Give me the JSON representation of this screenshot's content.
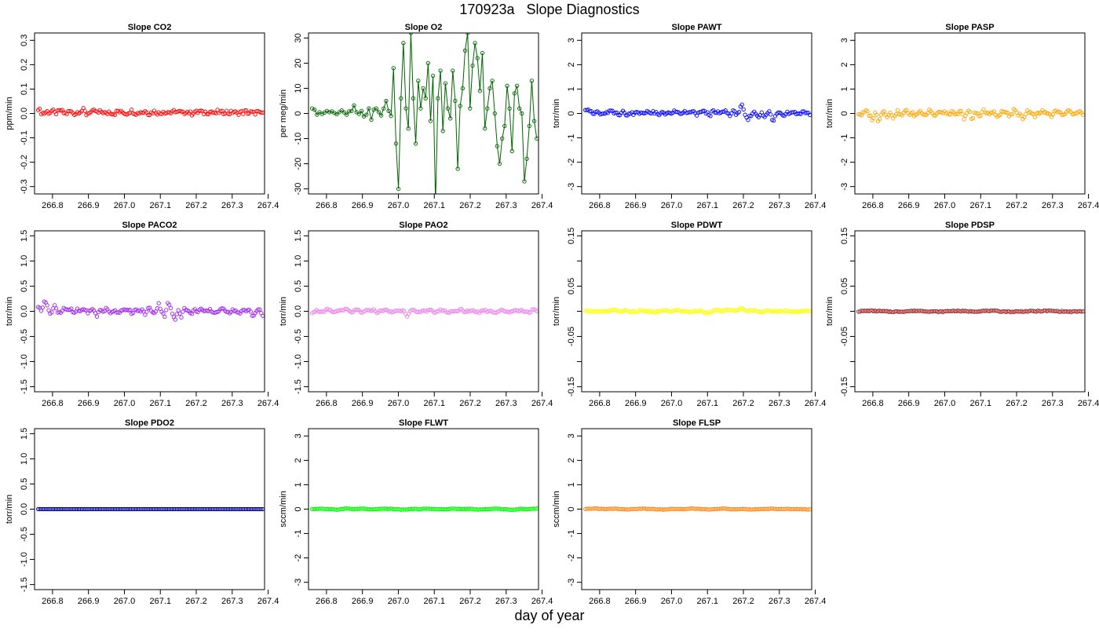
{
  "figure": {
    "title": "170923a   Slope Diagnostics",
    "xlabel": "day of year"
  },
  "chart_data": [
    {
      "type": "scatter",
      "title": "Slope CO2",
      "ylabel": "ppm/min",
      "color": "#ff0000",
      "ylim": [
        -0.33,
        0.33
      ],
      "yticks": [
        -0.3,
        -0.2,
        -0.1,
        0.0,
        0.1,
        0.2,
        0.3
      ],
      "ytick_labels": [
        "-0.3",
        "-0.2",
        "-0.1",
        "0.0",
        "0.1",
        "0.2",
        "0.3"
      ],
      "xlim": [
        266.75,
        267.39
      ],
      "xticks": [
        266.8,
        266.9,
        267.0,
        267.1,
        267.2,
        267.3,
        267.4
      ],
      "xtick_labels": [
        "266.8",
        "266.9",
        "267.0",
        "267.1",
        "267.2",
        "267.3",
        "267.4"
      ],
      "x_range": [
        266.76,
        267.385
      ],
      "noise": 0.008,
      "lines": false,
      "y": [
        0.022,
        0.004,
        0.0,
        0.008,
        0.003,
        0.012,
        0.0,
        0.005,
        0.013,
        0.002,
        0.0,
        0.009,
        0.004,
        -0.002,
        0.007,
        0.01,
        0.015,
        -0.004,
        0.006,
        0.004,
        0.012,
        0.0,
        0.009,
        0.005,
        -0.003,
        0.008,
        0.002,
        0.0,
        0.01,
        0.004,
        0.006,
        -0.002,
        0.008,
        0.011,
        0.003,
        0.0,
        0.007,
        0.004,
        0.012,
        -0.003,
        0.005,
        0.009,
        0.002,
        0.0,
        0.01,
        0.003,
        0.007,
        -0.001,
        0.013,
        0.004,
        0.006,
        0.0,
        0.009,
        0.005,
        -0.002,
        0.008,
        0.003,
        0.011,
        0.0,
        0.006,
        0.004,
        0.009,
        -0.003,
        0.007,
        0.005,
        0.002,
        0.01,
        0.0,
        0.004,
        0.008,
        -0.002,
        0.006,
        0.003,
        0.009,
        0.001,
        0.005,
        0.0,
        0.007,
        -0.001,
        0.004
      ]
    },
    {
      "type": "line",
      "title": "Slope O2",
      "ylabel": "per meg/min",
      "color": "#006400",
      "ylim": [
        -32,
        32
      ],
      "yticks": [
        -30,
        -20,
        -10,
        0,
        10,
        20,
        30
      ],
      "ytick_labels": [
        "-30",
        "-20",
        "-10",
        "0",
        "10",
        "20",
        "30"
      ],
      "xlim": [
        266.75,
        267.39
      ],
      "xticks": [
        266.8,
        266.9,
        267.0,
        267.1,
        267.2,
        267.3,
        267.4
      ],
      "xtick_labels": [
        "266.8",
        "266.9",
        "267.0",
        "267.1",
        "267.2",
        "267.3",
        "267.4"
      ],
      "x_range": [
        266.76,
        267.385
      ],
      "noise": 0,
      "lines": true,
      "y": [
        2,
        1.5,
        -0.5,
        0.5,
        -0.2,
        0.3,
        1,
        0.5,
        0.8,
        0.2,
        -0.3,
        0.5,
        1.2,
        0.4,
        -0.5,
        0.8,
        1,
        3.2,
        0.5,
        -0.2,
        1,
        -1.2,
        -0.5,
        2,
        -2.5,
        1.5,
        2,
        0.5,
        -0.8,
        2,
        5,
        1,
        -1,
        18,
        -12,
        -30,
        6,
        28,
        2,
        -6,
        32,
        6,
        -12,
        13,
        2,
        10,
        6,
        20,
        -3,
        15,
        -36,
        6,
        17,
        -7,
        12,
        2,
        -2,
        17,
        5,
        -22,
        3,
        10,
        25,
        32,
        2,
        19,
        28,
        22,
        9,
        24,
        -6,
        2,
        10,
        13,
        0,
        -13,
        -20,
        -10,
        -5,
        11,
        2,
        -15,
        8,
        11,
        2,
        0,
        -27,
        -18,
        -5,
        13,
        -3,
        -10
      ]
    },
    {
      "type": "scatter",
      "title": "Slope PAWT",
      "ylabel": "torr/min",
      "color": "#0000ff",
      "ylim": [
        -3.3,
        3.3
      ],
      "yticks": [
        -3,
        -2,
        -1,
        0,
        1,
        2,
        3
      ],
      "ytick_labels": [
        "-3",
        "-2",
        "-1",
        "0",
        "1",
        "2",
        "3"
      ],
      "xlim": [
        266.75,
        267.39
      ],
      "xticks": [
        266.8,
        266.9,
        267.0,
        267.1,
        267.2,
        267.3,
        267.4
      ],
      "xtick_labels": [
        "266.8",
        "266.9",
        "267.0",
        "267.1",
        "267.2",
        "267.3",
        "267.4"
      ],
      "x_range": [
        266.76,
        267.385
      ],
      "noise": 0.06,
      "lines": false,
      "y": [
        0.2,
        0.18,
        0.05,
        -0.05,
        0.1,
        0.0,
        -0.08,
        0.04,
        0.0,
        0.12,
        0.0,
        0.05,
        -0.05,
        0.08,
        0.0,
        -0.1,
        0.06,
        0.0,
        0.1,
        -0.05,
        0.03,
        0.0,
        0.15,
        -0.02,
        0.05,
        0.0,
        -0.1,
        0.08,
        0.0,
        0.04,
        -0.06,
        0.1,
        0.0,
        0.05,
        -0.05,
        0.1,
        0.0,
        0.03,
        0.08,
        -0.08,
        0.0,
        0.12,
        0.05,
        0.0,
        -0.05,
        0.1,
        0.0,
        0.04,
        0.0,
        0.15,
        0.0,
        -0.05,
        0.08,
        0.0,
        0.05,
        0.35,
        0.0,
        -0.3,
        -0.1,
        0.05,
        0.0,
        -0.15,
        0.1,
        -0.2,
        0.0,
        0.08,
        -0.4,
        -0.05,
        0.1,
        0.0,
        -0.05,
        0.05,
        0.0,
        0.1,
        0.0,
        -0.02,
        0.05,
        0.08,
        0.0,
        -0.02
      ]
    },
    {
      "type": "scatter",
      "title": "Slope PASP",
      "ylabel": "torr/min",
      "color": "#ffa500",
      "ylim": [
        -3.3,
        3.3
      ],
      "yticks": [
        -3,
        -2,
        -1,
        0,
        1,
        2,
        3
      ],
      "ytick_labels": [
        "-3",
        "-2",
        "-1",
        "0",
        "1",
        "2",
        "3"
      ],
      "xlim": [
        266.75,
        267.39
      ],
      "xticks": [
        266.8,
        266.9,
        267.0,
        267.1,
        267.2,
        267.3,
        267.4
      ],
      "xtick_labels": [
        "266.8",
        "266.9",
        "267.0",
        "267.1",
        "267.2",
        "267.3",
        "267.4"
      ],
      "x_range": [
        266.76,
        267.385
      ],
      "noise": 0.07,
      "lines": false,
      "y": [
        0.0,
        -0.05,
        0.02,
        0.1,
        -0.1,
        -0.25,
        0.05,
        -0.3,
        0.0,
        0.1,
        -0.1,
        0.05,
        -0.2,
        0.0,
        0.08,
        -0.1,
        0.0,
        0.15,
        -0.05,
        0.0,
        -0.1,
        0.05,
        0.1,
        0.0,
        -0.05,
        0.2,
        0.0,
        -0.1,
        0.05,
        0.0,
        0.1,
        -0.05,
        0.0,
        0.05,
        -0.1,
        0.0,
        0.08,
        -0.2,
        0.0,
        0.1,
        -0.3,
        0.05,
        0.0,
        -0.1,
        0.15,
        0.0,
        -0.05,
        0.1,
        0.0,
        -0.2,
        0.05,
        0.0,
        0.1,
        -0.05,
        0.0,
        0.2,
        -0.1,
        0.0,
        -0.25,
        0.05,
        0.1,
        0.0,
        -0.1,
        0.05,
        0.0,
        0.15,
        -0.05,
        0.0,
        -0.2,
        0.1,
        0.0,
        0.05,
        -0.1,
        0.0,
        0.1,
        0.0,
        -0.05,
        0.0,
        0.05,
        -0.1
      ]
    },
    {
      "type": "scatter",
      "title": "Slope PACO2",
      "ylabel": "torr/min",
      "color": "#a020f0",
      "ylim": [
        -1.6,
        1.6
      ],
      "yticks": [
        -1.5,
        -1.0,
        -0.5,
        0.0,
        0.5,
        1.0,
        1.5
      ],
      "ytick_labels": [
        "-1.5",
        "-1.0",
        "-0.5",
        "0.0",
        "0.5",
        "1.0",
        "1.5"
      ],
      "xlim": [
        266.75,
        267.39
      ],
      "xticks": [
        266.8,
        266.9,
        267.0,
        267.1,
        267.2,
        267.3,
        267.4
      ],
      "xtick_labels": [
        "266.8",
        "266.9",
        "267.0",
        "267.1",
        "267.2",
        "267.3",
        "267.4"
      ],
      "x_range": [
        266.76,
        267.385
      ],
      "noise": 0.025,
      "lines": false,
      "y": [
        0.1,
        0.0,
        0.25,
        0.05,
        -0.05,
        0.12,
        0.0,
        -0.02,
        0.08,
        0.0,
        0.05,
        -0.05,
        0.03,
        0.0,
        0.06,
        -0.02,
        0.0,
        0.05,
        -0.1,
        0.03,
        0.0,
        0.06,
        -0.04,
        0.02,
        0.0,
        -0.02,
        0.05,
        0.0,
        0.03,
        -0.05,
        0.04,
        0.0,
        0.02,
        -0.06,
        0.08,
        0.0,
        -0.03,
        0.15,
        0.0,
        -0.1,
        0.2,
        0.0,
        -0.2,
        0.05,
        -0.1,
        0.08,
        0.0,
        -0.05,
        0.03,
        0.0,
        0.05,
        -0.02,
        0.0,
        0.03,
        -0.04,
        0.0,
        0.02,
        0.05,
        0.0,
        -0.02,
        0.03,
        0.0,
        -0.05,
        0.02,
        0.0,
        0.04,
        -0.1,
        0.0,
        0.03,
        -0.08
      ]
    },
    {
      "type": "scatter",
      "title": "Slope PAO2",
      "ylabel": "torr/min",
      "color": "#ee82ee",
      "ylim": [
        -1.6,
        1.6
      ],
      "yticks": [
        -1.5,
        -1.0,
        -0.5,
        0.0,
        0.5,
        1.0,
        1.5
      ],
      "ytick_labels": [
        "-1.5",
        "-1.0",
        "-0.5",
        "0.0",
        "0.5",
        "1.0",
        "1.5"
      ],
      "xlim": [
        266.75,
        267.39
      ],
      "xticks": [
        266.8,
        266.9,
        267.0,
        267.1,
        267.2,
        267.3,
        267.4
      ],
      "xtick_labels": [
        "266.8",
        "266.9",
        "267.0",
        "267.1",
        "267.2",
        "267.3",
        "267.4"
      ],
      "x_range": [
        266.76,
        267.385
      ],
      "noise": 0.02,
      "lines": false,
      "y": [
        -0.02,
        0.02,
        0.0,
        -0.03,
        0.04,
        0.0,
        -0.02,
        0.03,
        0.0,
        0.05,
        -0.02,
        0.0,
        0.03,
        -0.04,
        0.02,
        0.0,
        0.04,
        -0.02,
        0.0,
        0.03,
        0.0,
        -0.02,
        0.02,
        0.0,
        0.04,
        -0.1,
        0.02,
        0.0,
        -0.03,
        0.03,
        0.0,
        0.02,
        -0.02,
        0.0,
        0.03,
        0.0,
        -0.03,
        0.02,
        0.0,
        0.04,
        -0.02,
        0.0,
        0.02,
        0.0,
        -0.02,
        0.03,
        0.0,
        0.02,
        -0.03,
        0.0,
        0.02,
        0.0,
        -0.02,
        0.03,
        0.0,
        0.02,
        0.0,
        -0.02,
        0.03,
        0.0
      ]
    },
    {
      "type": "scatter",
      "title": "Slope PDWT",
      "ylabel": "torr/min",
      "color": "#ffff00",
      "ylim": [
        -0.16,
        0.16
      ],
      "yticks": [
        -0.15,
        -0.1,
        -0.05,
        0.0,
        0.05,
        0.1,
        0.15
      ],
      "ytick_labels": [
        "-0.15",
        "",
        "-0.05",
        "",
        "0.05",
        "",
        "0.15"
      ],
      "xlim": [
        266.75,
        267.39
      ],
      "xticks": [
        266.8,
        266.9,
        267.0,
        267.1,
        267.2,
        267.3,
        267.4
      ],
      "xtick_labels": [
        "266.8",
        "266.9",
        "267.0",
        "267.1",
        "267.2",
        "267.3",
        "267.4"
      ],
      "x_range": [
        266.76,
        267.385
      ],
      "noise": 0.0015,
      "lines": false,
      "y": [
        0.0,
        0.001,
        0.0,
        -0.001,
        0.0,
        0.002,
        0.0,
        0.001,
        -0.001,
        0.0,
        0.001,
        0.0,
        -0.002,
        0.0,
        0.001,
        0.0,
        0.002,
        0.0,
        -0.001,
        0.0,
        0.001,
        -0.003,
        0.0,
        0.002,
        0.0,
        0.004,
        0.0,
        0.006,
        0.0,
        0.002,
        0.0,
        -0.001,
        0.001,
        0.0,
        0.0,
        0.001,
        0.0,
        -0.001,
        0.0,
        0.001
      ]
    },
    {
      "type": "scatter",
      "title": "Slope PDSP",
      "ylabel": "torr/min",
      "color": "#a52a2a",
      "ylim": [
        -0.16,
        0.16
      ],
      "yticks": [
        -0.15,
        -0.1,
        -0.05,
        0.0,
        0.05,
        0.1,
        0.15
      ],
      "ytick_labels": [
        "-0.15",
        "",
        "-0.05",
        "",
        "0.05",
        "",
        "0.15"
      ],
      "xlim": [
        266.75,
        267.39
      ],
      "xticks": [
        266.8,
        266.9,
        267.0,
        267.1,
        267.2,
        267.3,
        267.4
      ],
      "xtick_labels": [
        "266.8",
        "266.9",
        "267.0",
        "267.1",
        "267.2",
        "267.3",
        "267.4"
      ],
      "x_range": [
        266.76,
        267.385
      ],
      "noise": 0.001,
      "lines": false,
      "y": [
        0.0,
        0.001,
        0.0,
        -0.001,
        0.0,
        0.001,
        0.0,
        -0.001,
        0.001,
        0.0,
        0.0,
        0.001,
        0.0,
        -0.001,
        0.0,
        0.0,
        0.001,
        0.0,
        -0.001,
        0.0
      ]
    },
    {
      "type": "scatter",
      "title": "Slope PDO2",
      "ylabel": "torr/min",
      "color": "#00008b",
      "ylim": [
        -1.6,
        1.6
      ],
      "yticks": [
        -1.5,
        -1.0,
        -0.5,
        0.0,
        0.5,
        1.0,
        1.5
      ],
      "ytick_labels": [
        "-1.5",
        "-1.0",
        "-0.5",
        "0.0",
        "0.5",
        "1.0",
        "1.5"
      ],
      "xlim": [
        266.75,
        267.39
      ],
      "xticks": [
        266.8,
        266.9,
        267.0,
        267.1,
        267.2,
        267.3,
        267.4
      ],
      "xtick_labels": [
        "266.8",
        "266.9",
        "267.0",
        "267.1",
        "267.2",
        "267.3",
        "267.4"
      ],
      "x_range": [
        266.76,
        267.385
      ],
      "noise": 0,
      "lines": false,
      "y": [
        0,
        0,
        0,
        0,
        0,
        0,
        0,
        0,
        0,
        0
      ]
    },
    {
      "type": "scatter",
      "title": "Slope FLWT",
      "ylabel": "sccm/min",
      "color": "#00ff00",
      "ylim": [
        -3.3,
        3.3
      ],
      "yticks": [
        -3,
        -2,
        -1,
        0,
        1,
        2,
        3
      ],
      "ytick_labels": [
        "-3",
        "-2",
        "-1",
        "0",
        "1",
        "2",
        "3"
      ],
      "xlim": [
        266.75,
        267.39
      ],
      "xticks": [
        266.8,
        266.9,
        267.0,
        267.1,
        267.2,
        267.3,
        267.4
      ],
      "xtick_labels": [
        "266.8",
        "266.9",
        "267.0",
        "267.1",
        "267.2",
        "267.3",
        "267.4"
      ],
      "x_range": [
        266.76,
        267.385
      ],
      "noise": 0.01,
      "lines": false,
      "y": [
        0.0,
        0.02,
        0.0,
        -0.02,
        0.03,
        0.0,
        0.02,
        -0.01,
        0.0,
        0.02,
        0.0,
        -0.02,
        0.01,
        0.0,
        0.02,
        0.0,
        -0.01,
        0.02,
        0.0,
        0.01,
        -0.02,
        0.0,
        0.02,
        0.0,
        -0.03,
        0.01,
        0.0,
        0.03
      ]
    },
    {
      "type": "scatter",
      "title": "Slope FLSP",
      "ylabel": "sccm/min",
      "color": "#ff8c1a",
      "ylim": [
        -3.3,
        3.3
      ],
      "yticks": [
        -3,
        -2,
        -1,
        0,
        1,
        2,
        3
      ],
      "ytick_labels": [
        "-3",
        "-2",
        "-1",
        "0",
        "1",
        "2",
        "3"
      ],
      "xlim": [
        266.75,
        267.39
      ],
      "xticks": [
        266.8,
        266.9,
        267.0,
        267.1,
        267.2,
        267.3,
        267.4
      ],
      "xtick_labels": [
        "266.8",
        "266.9",
        "267.0",
        "267.1",
        "267.2",
        "267.3",
        "267.4"
      ],
      "x_range": [
        266.76,
        267.385
      ],
      "noise": 0.01,
      "lines": false,
      "y": [
        0.0,
        0.03,
        0.0,
        0.02,
        -0.01,
        0.0,
        0.02,
        0.0,
        -0.02,
        0.01,
        0.0,
        0.02,
        0.0,
        -0.01,
        0.02,
        0.0,
        0.01,
        -0.02,
        0.0,
        0.02,
        0.0,
        0.01,
        0.0,
        -0.01
      ]
    }
  ]
}
